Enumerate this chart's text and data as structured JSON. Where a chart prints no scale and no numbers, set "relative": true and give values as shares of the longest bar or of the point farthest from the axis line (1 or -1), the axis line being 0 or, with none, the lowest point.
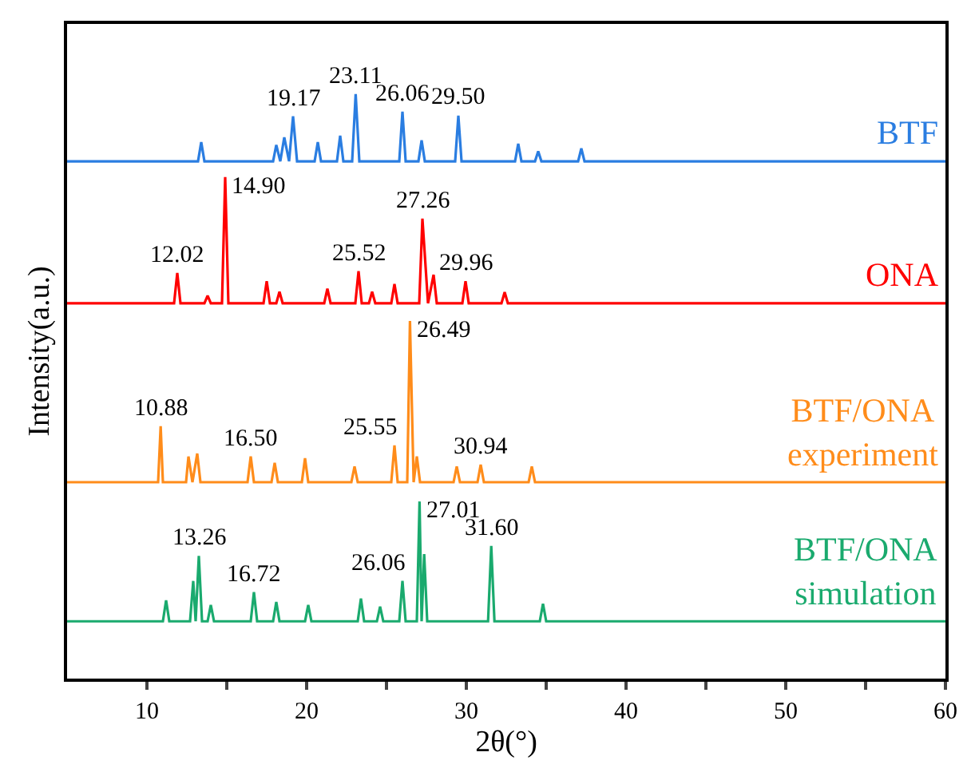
{
  "chart_data": {
    "type": "line",
    "relative": true,
    "xlabel": "2θ(°)",
    "ylabel": "Intensity(a.u.)",
    "xlim": [
      5,
      60
    ],
    "xticks": [
      10,
      {
        "value": 15,
        "label": null
      },
      20,
      {
        "value": 25,
        "label": null
      },
      30,
      {
        "value": 35,
        "label": null
      },
      40,
      {
        "value": 45,
        "label": null
      },
      50,
      {
        "value": 55,
        "label": null
      },
      60
    ],
    "legend": false,
    "marker": "none",
    "line_style": "solid",
    "series": [
      {
        "name": "BTF",
        "color": "#2a7de1",
        "x": [
          5,
          13.2,
          13.4,
          13.6,
          17.9,
          18.1,
          18.35,
          18.6,
          18.9,
          19.15,
          19.4,
          20.5,
          20.7,
          20.9,
          21.9,
          22.1,
          22.3,
          22.85,
          23.07,
          23.3,
          25.8,
          26.0,
          26.2,
          27.0,
          27.2,
          27.4,
          29.3,
          29.5,
          29.7,
          33.05,
          33.25,
          33.45,
          34.3,
          34.5,
          34.7,
          37.0,
          37.2,
          37.4,
          60
        ],
        "values": [
          0.885,
          0.885,
          0.918,
          0.885,
          0.885,
          0.913,
          0.885,
          0.926,
          0.885,
          0.962,
          0.885,
          0.885,
          0.918,
          0.885,
          0.885,
          0.929,
          0.885,
          0.885,
          1.0,
          0.885,
          0.885,
          0.97,
          0.885,
          0.885,
          0.921,
          0.885,
          0.885,
          0.963,
          0.885,
          0.885,
          0.915,
          0.885,
          0.885,
          0.902,
          0.885,
          0.885,
          0.907,
          0.885,
          0.885
        ]
      },
      {
        "name": "ONA",
        "color": "#ff0000",
        "x": [
          5,
          11.7,
          11.9,
          12.1,
          13.6,
          13.8,
          14.0,
          14.7,
          14.9,
          15.1,
          17.3,
          17.5,
          17.7,
          18.1,
          18.3,
          18.5,
          21.1,
          21.3,
          21.5,
          23.05,
          23.25,
          23.45,
          23.9,
          24.1,
          24.3,
          25.3,
          25.5,
          25.7,
          27.05,
          27.25,
          27.6,
          27.95,
          28.15,
          29.75,
          29.95,
          30.15,
          32.2,
          32.4,
          32.6,
          60
        ],
        "values": [
          0.642,
          0.642,
          0.694,
          0.642,
          0.642,
          0.655,
          0.642,
          0.642,
          0.858,
          0.642,
          0.642,
          0.68,
          0.642,
          0.642,
          0.662,
          0.642,
          0.642,
          0.667,
          0.642,
          0.642,
          0.697,
          0.642,
          0.642,
          0.662,
          0.642,
          0.642,
          0.675,
          0.642,
          0.642,
          0.787,
          0.642,
          0.691,
          0.642,
          0.642,
          0.68,
          0.642,
          0.642,
          0.661,
          0.642,
          0.642
        ]
      },
      {
        "name": "BTF/ONA\nexperiment",
        "color": "#ff8c1a",
        "x": [
          5,
          10.7,
          10.86,
          11.0,
          12.45,
          12.6,
          12.85,
          13.15,
          13.35,
          16.3,
          16.5,
          16.7,
          17.8,
          18.0,
          18.2,
          19.7,
          19.9,
          20.1,
          22.8,
          23.0,
          23.2,
          25.3,
          25.5,
          25.7,
          26.3,
          26.47,
          26.7,
          26.9,
          27.1,
          29.2,
          29.4,
          29.6,
          30.7,
          30.9,
          31.1,
          33.9,
          34.1,
          34.3,
          60
        ],
        "values": [
          0.336,
          0.336,
          0.432,
          0.336,
          0.336,
          0.38,
          0.336,
          0.385,
          0.336,
          0.336,
          0.38,
          0.336,
          0.336,
          0.369,
          0.336,
          0.336,
          0.377,
          0.336,
          0.336,
          0.363,
          0.336,
          0.336,
          0.399,
          0.336,
          0.336,
          0.612,
          0.336,
          0.38,
          0.336,
          0.336,
          0.363,
          0.336,
          0.336,
          0.366,
          0.336,
          0.336,
          0.363,
          0.336,
          0.336
        ]
      },
      {
        "name": "BTF/ONA\nsimulation",
        "color": "#1aaa6e",
        "x": [
          5,
          11.0,
          11.2,
          11.4,
          12.7,
          12.9,
          13.05,
          13.25,
          13.45,
          13.8,
          14.0,
          14.2,
          16.5,
          16.7,
          16.9,
          17.9,
          18.1,
          18.3,
          19.9,
          20.1,
          20.3,
          23.2,
          23.4,
          23.6,
          24.4,
          24.6,
          24.8,
          25.8,
          26.0,
          26.2,
          26.9,
          27.07,
          27.2,
          27.36,
          27.55,
          31.36,
          31.56,
          31.76,
          34.6,
          34.8,
          35.0,
          60
        ],
        "values": [
          0.098,
          0.098,
          0.134,
          0.098,
          0.098,
          0.167,
          0.098,
          0.21,
          0.098,
          0.098,
          0.126,
          0.098,
          0.098,
          0.148,
          0.098,
          0.098,
          0.131,
          0.098,
          0.098,
          0.126,
          0.098,
          0.098,
          0.137,
          0.098,
          0.098,
          0.123,
          0.098,
          0.098,
          0.167,
          0.098,
          0.098,
          0.303,
          0.098,
          0.213,
          0.098,
          0.098,
          0.227,
          0.098,
          0.098,
          0.128,
          0.098,
          0.098
        ]
      }
    ],
    "annotations": [
      {
        "text": "19.17",
        "x": 19.15,
        "y": 0.962
      },
      {
        "text": "23.11",
        "x": 23.07,
        "y": 1.0
      },
      {
        "text": "26.06",
        "x": 26.0,
        "y": 0.97
      },
      {
        "text": "29.50",
        "x": 29.5,
        "y": 0.963
      },
      {
        "text": "12.02",
        "x": 11.9,
        "y": 0.694
      },
      {
        "text": "14.90",
        "x": 14.9,
        "y": 0.858
      },
      {
        "text": "25.52",
        "x": 23.25,
        "y": 0.697
      },
      {
        "text": "27.26",
        "x": 27.25,
        "y": 0.787
      },
      {
        "text": "29.96",
        "x": 29.95,
        "y": 0.68
      },
      {
        "text": "10.88",
        "x": 10.86,
        "y": 0.432
      },
      {
        "text": "16.50",
        "x": 16.5,
        "y": 0.38
      },
      {
        "text": "25.55",
        "x": 25.5,
        "y": 0.399
      },
      {
        "text": "26.49",
        "x": 26.47,
        "y": 0.612
      },
      {
        "text": "30.94",
        "x": 30.9,
        "y": 0.366
      },
      {
        "text": "13.26",
        "x": 13.25,
        "y": 0.21
      },
      {
        "text": "16.72",
        "x": 16.7,
        "y": 0.148
      },
      {
        "text": "26.06",
        "x": 26.0,
        "y": 0.167
      },
      {
        "text": "27.01",
        "x": 27.07,
        "y": 0.303
      },
      {
        "text": "31.60",
        "x": 31.56,
        "y": 0.227
      }
    ]
  }
}
